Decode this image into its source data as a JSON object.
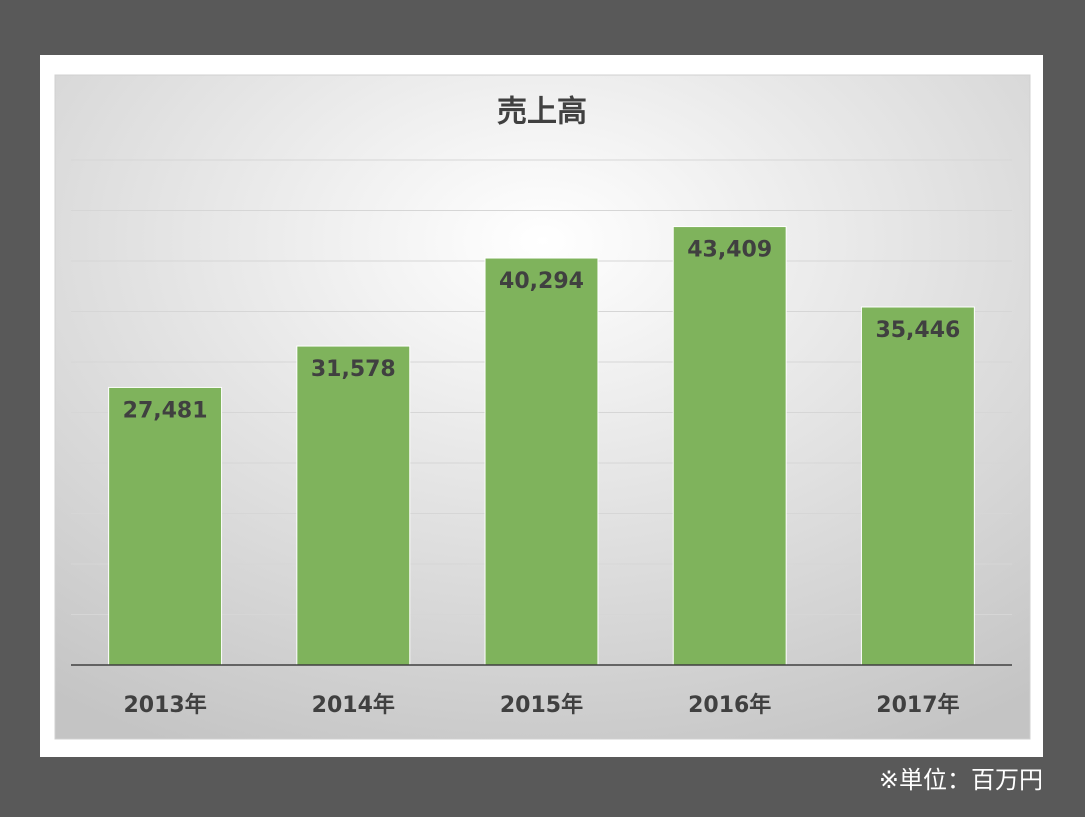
{
  "chart_data": {
    "type": "bar",
    "title": "売上高",
    "categories": [
      "2013年",
      "2014年",
      "2015年",
      "2016年",
      "2017年"
    ],
    "values": [
      27481,
      31578,
      40294,
      43409,
      35446
    ],
    "value_labels": [
      "27,481",
      "31,578",
      "40,294",
      "43,409",
      "35,446"
    ],
    "color": "#7fb35c",
    "ylim": [
      0,
      50000
    ],
    "yticks": [
      0,
      5000,
      10000,
      15000,
      20000,
      25000,
      30000,
      35000,
      40000,
      45000,
      50000
    ],
    "grid": true,
    "note": "※単位：百万円"
  }
}
